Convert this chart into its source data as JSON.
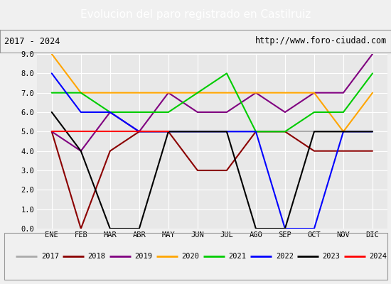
{
  "title": "Evolucion del paro registrado en Castilruiz",
  "subtitle_left": "2017 - 2024",
  "subtitle_right": "http://www.foro-ciudad.com",
  "months": [
    "ENE",
    "FEB",
    "MAR",
    "ABR",
    "MAY",
    "JUN",
    "JUL",
    "AGO",
    "SEP",
    "OCT",
    "NOV",
    "DIC"
  ],
  "ylim": [
    0.0,
    9.0
  ],
  "yticks": [
    0.0,
    1.0,
    2.0,
    3.0,
    4.0,
    5.0,
    6.0,
    7.0,
    8.0,
    9.0
  ],
  "series": {
    "2017": {
      "color": "#aaaaaa",
      "data": [
        5,
        5,
        5,
        5,
        5,
        5,
        5,
        5,
        5,
        5,
        5,
        5
      ]
    },
    "2018": {
      "color": "#8b0000",
      "data": [
        5,
        0,
        4,
        5,
        5,
        3,
        3,
        5,
        5,
        4,
        4,
        4
      ]
    },
    "2019": {
      "color": "#800080",
      "data": [
        5,
        4,
        6,
        5,
        7,
        6,
        6,
        7,
        6,
        7,
        7,
        9
      ]
    },
    "2020": {
      "color": "#ffa500",
      "data": [
        9,
        7,
        7,
        7,
        7,
        7,
        7,
        7,
        7,
        7,
        5,
        7
      ]
    },
    "2021": {
      "color": "#00cc00",
      "data": [
        7,
        7,
        6,
        6,
        6,
        7,
        8,
        5,
        5,
        6,
        6,
        8
      ]
    },
    "2022": {
      "color": "#0000ff",
      "data": [
        8,
        6,
        6,
        5,
        5,
        5,
        5,
        5,
        0,
        0,
        5,
        5
      ]
    },
    "2023": {
      "color": "#000000",
      "data": [
        6,
        4,
        0,
        0,
        5,
        5,
        5,
        0,
        0,
        5,
        5,
        5
      ]
    },
    "2024": {
      "color": "#ff0000",
      "data": [
        5,
        null,
        null,
        null,
        5,
        null,
        null,
        null,
        null,
        null,
        null,
        null
      ]
    }
  },
  "title_bg_color": "#4472c4",
  "title_text_color": "#ffffff",
  "plot_bg_color": "#e8e8e8",
  "grid_color": "#ffffff",
  "sub_bg_color": "#f0f0f0",
  "legend_years": [
    "2017",
    "2018",
    "2019",
    "2020",
    "2021",
    "2022",
    "2023",
    "2024"
  ]
}
